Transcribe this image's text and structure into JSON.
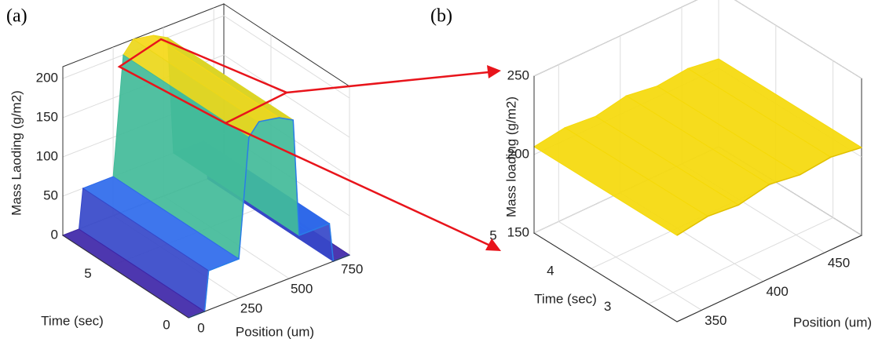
{
  "chart_data": [
    {
      "type": "surface3d",
      "panel_label": "(a)",
      "xlabel": "Position (um)",
      "ylabel": "Time (sec)",
      "zlabel": "Mass Laoding (g/m2)",
      "xlim": [
        0,
        800
      ],
      "xticks": [
        0,
        250,
        500,
        750
      ],
      "ylim": [
        0,
        8
      ],
      "yticks": [
        0,
        5
      ],
      "zlim": [
        0,
        215
      ],
      "zticks": [
        0,
        50,
        100,
        150,
        200
      ],
      "x": [
        0,
        80,
        100,
        250,
        300,
        350,
        450,
        520,
        550,
        600,
        700,
        720,
        800
      ],
      "values": [
        0,
        0,
        50,
        50,
        200,
        215,
        210,
        200,
        50,
        50,
        50,
        0,
        0
      ],
      "colormap": [
        "#3e26a8",
        "#2d6ff0",
        "#18b4c7",
        "#9ac83a",
        "#f9d915"
      ],
      "grid": true
    },
    {
      "type": "surface3d",
      "panel_label": "(b)",
      "xlabel": "Position (um)",
      "ylabel": "Time (sec)",
      "zlabel": "Mass loading (g/m2)",
      "xlim": [
        330,
        480
      ],
      "xticks": [
        350,
        400,
        450
      ],
      "ylim": [
        2.5,
        5
      ],
      "yticks": [
        3,
        4,
        5
      ],
      "zlim": [
        150,
        250
      ],
      "zticks": [
        150,
        200,
        250
      ],
      "x": [
        330,
        355,
        380,
        405,
        430,
        455,
        480
      ],
      "values": [
        205,
        208,
        206,
        210,
        207,
        209,
        206
      ],
      "color": "#f5d90a",
      "grid": true
    }
  ]
}
